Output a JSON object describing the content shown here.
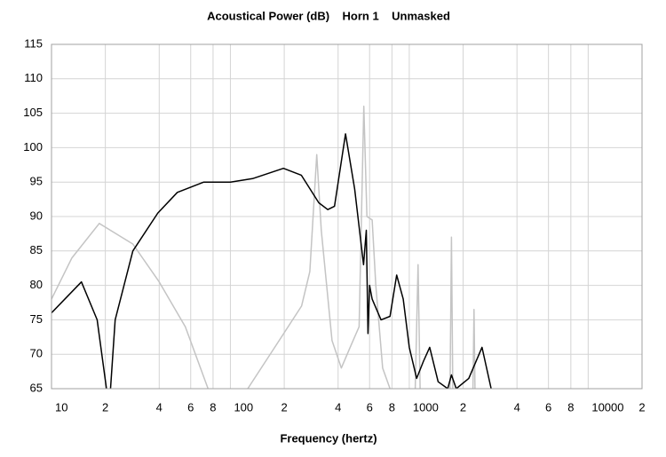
{
  "chart_data": {
    "type": "line",
    "title": "Acoustical Power (dB)    Horn 1    Unmasked",
    "x_label": "Frequency (hertz)",
    "log_x": true,
    "grid": true,
    "xlim": [
      10,
      20000
    ],
    "ylim": [
      65,
      115
    ],
    "xticks": [
      10,
      {
        "value": 20,
        "label": "2"
      },
      {
        "value": 40,
        "label": "4"
      },
      {
        "value": 60,
        "label": "6"
      },
      {
        "value": 80,
        "label": "8"
      },
      100,
      {
        "value": 200,
        "label": "2"
      },
      {
        "value": 400,
        "label": "4"
      },
      {
        "value": 600,
        "label": "6"
      },
      {
        "value": 800,
        "label": "8"
      },
      1000,
      {
        "value": 2000,
        "label": "2"
      },
      {
        "value": 4000,
        "label": "4"
      },
      {
        "value": 6000,
        "label": "6"
      },
      {
        "value": 8000,
        "label": "8"
      },
      10000,
      {
        "value": 20000,
        "label": "2"
      }
    ],
    "yticks": [
      65,
      70,
      75,
      80,
      85,
      90,
      95,
      100,
      105,
      110,
      115
    ],
    "series": [
      {
        "color": "#c4c4c4",
        "x": [
          10,
          13,
          18.5,
          28.5,
          40,
          56,
          75,
          90,
          null,
          110,
          125,
          177,
          250,
          278,
          304,
          322,
          370,
          417,
          467,
          524,
          557,
          580,
          620,
          650,
          710,
          780,
          850,
          null,
          1080,
          1120,
          1150,
          null,
          1690,
          1720,
          1750,
          null,
          2270,
          2300,
          2330
        ],
        "values": [
          78,
          84,
          89,
          86,
          80.5,
          74,
          65,
          60,
          null,
          60,
          65,
          71,
          77,
          82,
          99,
          88,
          72,
          68,
          71,
          74,
          106,
          90,
          89.5,
          80,
          68,
          65,
          60,
          null,
          65,
          83,
          65,
          null,
          65,
          87,
          65,
          null,
          65,
          76.5,
          65
        ]
      },
      {
        "color": "#000000",
        "x": [
          10,
          14.7,
          18,
          20.3,
          21,
          22.7,
          28.5,
          39.3,
          50.5,
          71,
          100,
          133,
          198,
          249,
          312,
          350,
          382,
          440,
          495,
          555,
          575,
          588,
          600,
          620,
          695,
          780,
          850,
          925,
          1000,
          1100,
          1200,
          1300,
          1450,
          1640,
          1720,
          1830,
          2150,
          2550,
          2870
        ],
        "values": [
          76,
          80.5,
          75,
          65,
          62,
          75,
          85,
          90.5,
          93.5,
          95,
          95,
          95.5,
          97,
          96,
          92,
          91,
          91.5,
          102,
          94,
          83,
          88,
          73,
          80,
          78,
          75,
          75.5,
          81.5,
          78,
          71,
          66.5,
          69,
          71,
          66,
          65,
          67,
          65,
          66.5,
          71,
          65
        ]
      }
    ]
  }
}
